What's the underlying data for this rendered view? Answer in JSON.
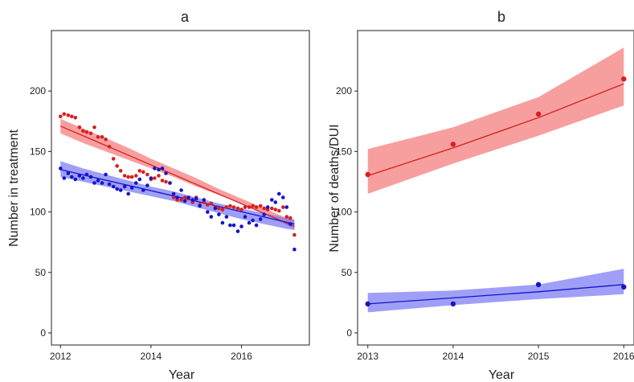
{
  "colors": {
    "series_a": "#d62020",
    "series_b": "#1515c8",
    "band_a": "#f47a7a",
    "band_b": "#7a7af4",
    "axis": "#222222"
  },
  "chart_data": [
    {
      "type": "scatter",
      "title": "a",
      "xlabel": "Year",
      "ylabel": "Number in treatment",
      "xlim": [
        2011.8,
        2017.5
      ],
      "ylim": [
        -10,
        250
      ],
      "xticks": [
        2012,
        2014,
        2016
      ],
      "yticks": [
        0,
        50,
        100,
        150,
        200
      ],
      "grid": false,
      "legend": "none",
      "series": [
        {
          "color": "red",
          "points": [
            [
              2012.0,
              179
            ],
            [
              2012.08,
              181
            ],
            [
              2012.17,
              180
            ],
            [
              2012.25,
              179
            ],
            [
              2012.33,
              178
            ],
            [
              2012.42,
              170
            ],
            [
              2012.5,
              167
            ],
            [
              2012.58,
              166
            ],
            [
              2012.67,
              165
            ],
            [
              2012.75,
              170
            ],
            [
              2012.83,
              162
            ],
            [
              2012.92,
              162
            ],
            [
              2013.0,
              160
            ],
            [
              2013.08,
              154
            ],
            [
              2013.17,
              144
            ],
            [
              2013.25,
              138
            ],
            [
              2013.33,
              134
            ],
            [
              2013.42,
              130
            ],
            [
              2013.5,
              129
            ],
            [
              2013.58,
              129
            ],
            [
              2013.67,
              130
            ],
            [
              2013.75,
              134
            ],
            [
              2013.83,
              133
            ],
            [
              2013.92,
              131
            ],
            [
              2014.0,
              127
            ],
            [
              2014.08,
              128
            ],
            [
              2014.17,
              130
            ],
            [
              2014.25,
              126
            ],
            [
              2014.33,
              125
            ],
            [
              2014.42,
              124
            ],
            [
              2014.5,
              112
            ],
            [
              2014.58,
              110
            ],
            [
              2014.67,
              110
            ],
            [
              2014.75,
              112
            ],
            [
              2014.83,
              111
            ],
            [
              2014.92,
              108
            ],
            [
              2015.0,
              112
            ],
            [
              2015.08,
              106
            ],
            [
              2015.17,
              108
            ],
            [
              2015.25,
              106
            ],
            [
              2015.33,
              107
            ],
            [
              2015.42,
              104
            ],
            [
              2015.5,
              103
            ],
            [
              2015.58,
              102
            ],
            [
              2015.67,
              104
            ],
            [
              2015.75,
              105
            ],
            [
              2015.83,
              104
            ],
            [
              2015.92,
              103
            ],
            [
              2016.0,
              102
            ],
            [
              2016.08,
              104
            ],
            [
              2016.17,
              104
            ],
            [
              2016.25,
              105
            ],
            [
              2016.33,
              104
            ],
            [
              2016.42,
              105
            ],
            [
              2016.5,
              103
            ],
            [
              2016.58,
              102
            ],
            [
              2016.67,
              103
            ],
            [
              2016.75,
              102
            ],
            [
              2016.83,
              101
            ],
            [
              2016.92,
              104
            ],
            [
              2017.0,
              96
            ],
            [
              2017.08,
              95
            ],
            [
              2017.17,
              81
            ]
          ],
          "fit": {
            "x": [
              2012.0,
              2017.17
            ],
            "y": [
              171,
              88
            ]
          },
          "band": {
            "x": [
              2012.0,
              2012.5,
              2013.0,
              2013.5,
              2014.0,
              2014.5,
              2015.0,
              2015.5,
              2016.0,
              2016.5,
              2017.0,
              2017.17
            ],
            "upper": [
              177,
              169,
              161,
              153,
              144,
              136,
              128,
              119,
              111,
              103,
              95,
              93
            ],
            "lower": [
              165,
              157,
              150,
              143,
              136,
              129,
              121,
              114,
              107,
              99,
              89,
              86
            ]
          }
        },
        {
          "color": "blue",
          "points": [
            [
              2012.0,
              136
            ],
            [
              2012.08,
              128
            ],
            [
              2012.17,
              132
            ],
            [
              2012.25,
              129
            ],
            [
              2012.33,
              127
            ],
            [
              2012.42,
              130
            ],
            [
              2012.5,
              128
            ],
            [
              2012.58,
              131
            ],
            [
              2012.67,
              129
            ],
            [
              2012.75,
              124
            ],
            [
              2012.83,
              126
            ],
            [
              2012.92,
              124
            ],
            [
              2013.0,
              131
            ],
            [
              2013.08,
              123
            ],
            [
              2013.17,
              121
            ],
            [
              2013.25,
              119
            ],
            [
              2013.33,
              118
            ],
            [
              2013.42,
              121
            ],
            [
              2013.5,
              115
            ],
            [
              2013.58,
              120
            ],
            [
              2013.67,
              124
            ],
            [
              2013.75,
              127
            ],
            [
              2013.83,
              118
            ],
            [
              2013.92,
              122
            ],
            [
              2014.0,
              128
            ],
            [
              2014.08,
              136
            ],
            [
              2014.17,
              135
            ],
            [
              2014.25,
              136
            ],
            [
              2014.33,
              132
            ],
            [
              2014.42,
              124
            ],
            [
              2014.5,
              115
            ],
            [
              2014.58,
              112
            ],
            [
              2014.67,
              118
            ],
            [
              2014.75,
              109
            ],
            [
              2014.83,
              112
            ],
            [
              2014.92,
              110
            ],
            [
              2015.0,
              111
            ],
            [
              2015.08,
              105
            ],
            [
              2015.17,
              110
            ],
            [
              2015.25,
              100
            ],
            [
              2015.33,
              96
            ],
            [
              2015.42,
              103
            ],
            [
              2015.5,
              98
            ],
            [
              2015.58,
              91
            ],
            [
              2015.67,
              96
            ],
            [
              2015.75,
              89
            ],
            [
              2015.83,
              89
            ],
            [
              2015.92,
              84
            ],
            [
              2016.0,
              88
            ],
            [
              2016.08,
              96
            ],
            [
              2016.17,
              91
            ],
            [
              2016.25,
              93
            ],
            [
              2016.33,
              89
            ],
            [
              2016.42,
              94
            ],
            [
              2016.5,
              98
            ],
            [
              2016.58,
              104
            ],
            [
              2016.67,
              110
            ],
            [
              2016.75,
              108
            ],
            [
              2016.83,
              115
            ],
            [
              2016.92,
              112
            ],
            [
              2017.0,
              104
            ],
            [
              2017.08,
              90
            ],
            [
              2017.17,
              69
            ]
          ],
          "fit": {
            "x": [
              2012.0,
              2017.17
            ],
            "y": [
              135,
              90
            ]
          },
          "band": {
            "x": [
              2012.0,
              2012.5,
              2013.0,
              2013.5,
              2014.0,
              2014.5,
              2015.0,
              2015.5,
              2016.0,
              2016.5,
              2017.0,
              2017.17
            ],
            "upper": [
              142,
              136,
              131,
              126,
              121,
              117,
              112,
              107,
              103,
              99,
              95,
              94
            ],
            "lower": [
              129,
              125,
              121,
              117,
              113,
              109,
              104,
              99,
              94,
              90,
              86,
              85
            ]
          }
        }
      ]
    },
    {
      "type": "line",
      "title": "b",
      "xlabel": "Year",
      "ylabel": "Number of deaths/DUI",
      "xlim": [
        2012.88,
        2016.12
      ],
      "ylim": [
        -10,
        250
      ],
      "xticks": [
        2013,
        2014,
        2015,
        2016
      ],
      "yticks": [
        0,
        50,
        100,
        150,
        200
      ],
      "grid": false,
      "legend": "none",
      "series": [
        {
          "color": "red",
          "x": [
            2013,
            2014,
            2015,
            2016
          ],
          "values": [
            131,
            156,
            181,
            210
          ],
          "fit": [
            130,
            153,
            178,
            206
          ],
          "band_upper": [
            152,
            170,
            195,
            236
          ],
          "band_lower": [
            115,
            140,
            163,
            188
          ]
        },
        {
          "color": "blue",
          "x": [
            2013,
            2014,
            2015,
            2016
          ],
          "values": [
            24,
            24,
            40,
            38
          ],
          "fit": [
            24,
            29,
            34,
            40
          ],
          "band_upper": [
            33,
            35,
            40,
            53
          ],
          "band_lower": [
            17,
            23,
            28,
            32
          ]
        }
      ]
    }
  ]
}
